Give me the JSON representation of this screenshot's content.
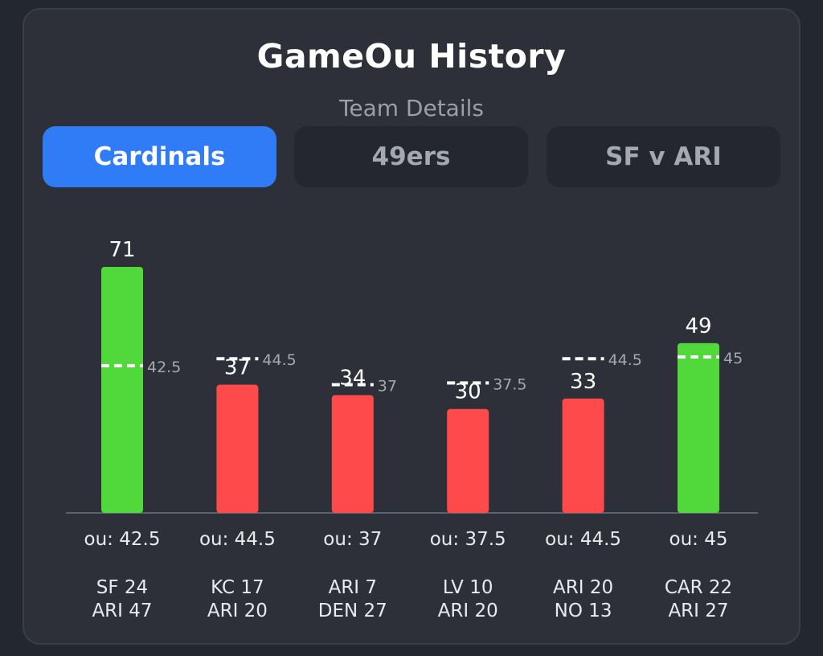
{
  "header": {
    "title": "GameOu History",
    "subtitle": "Team Details"
  },
  "tabs": [
    {
      "label": "Cardinals",
      "active": true
    },
    {
      "label": "49ers",
      "active": false
    },
    {
      "label": "SF v ARI",
      "active": false
    }
  ],
  "colors": {
    "over": "#51d93b",
    "under": "#ff4a4b",
    "tab_active": "#2f7cf6",
    "line_marker": "#ffffff"
  },
  "chart_data": {
    "type": "bar",
    "categories": [
      "SF 24 ARI 47",
      "KC 17 ARI 20",
      "ARI 7 DEN 27",
      "LV 10 ARI 20",
      "ARI 20 NO 13",
      "CAR 22 ARI 27"
    ],
    "ylim": [
      0,
      80
    ],
    "games": [
      {
        "total": 71,
        "total_label": "71",
        "ou": 42.5,
        "ou_line_label": "42.5",
        "ou_label": "ou: 42.5",
        "team1": "SF 24",
        "team2": "ARI 47",
        "result": "over"
      },
      {
        "total": 37,
        "total_label": "37",
        "ou": 44.5,
        "ou_line_label": "44.5",
        "ou_label": "ou: 44.5",
        "team1": "KC 17",
        "team2": "ARI 20",
        "result": "under"
      },
      {
        "total": 34,
        "total_label": "34",
        "ou": 37,
        "ou_line_label": "37",
        "ou_label": "ou: 37",
        "team1": "ARI 7",
        "team2": "DEN 27",
        "result": "under"
      },
      {
        "total": 30,
        "total_label": "30",
        "ou": 37.5,
        "ou_line_label": "37.5",
        "ou_label": "ou: 37.5",
        "team1": "LV 10",
        "team2": "ARI 20",
        "result": "under"
      },
      {
        "total": 33,
        "total_label": "33",
        "ou": 44.5,
        "ou_line_label": "44.5",
        "ou_label": "ou: 44.5",
        "team1": "ARI 20",
        "team2": "NO 13",
        "result": "under"
      },
      {
        "total": 49,
        "total_label": "49",
        "ou": 45,
        "ou_line_label": "45",
        "ou_label": "ou: 45",
        "team1": "CAR 22",
        "team2": "ARI 27",
        "result": "over"
      }
    ]
  }
}
